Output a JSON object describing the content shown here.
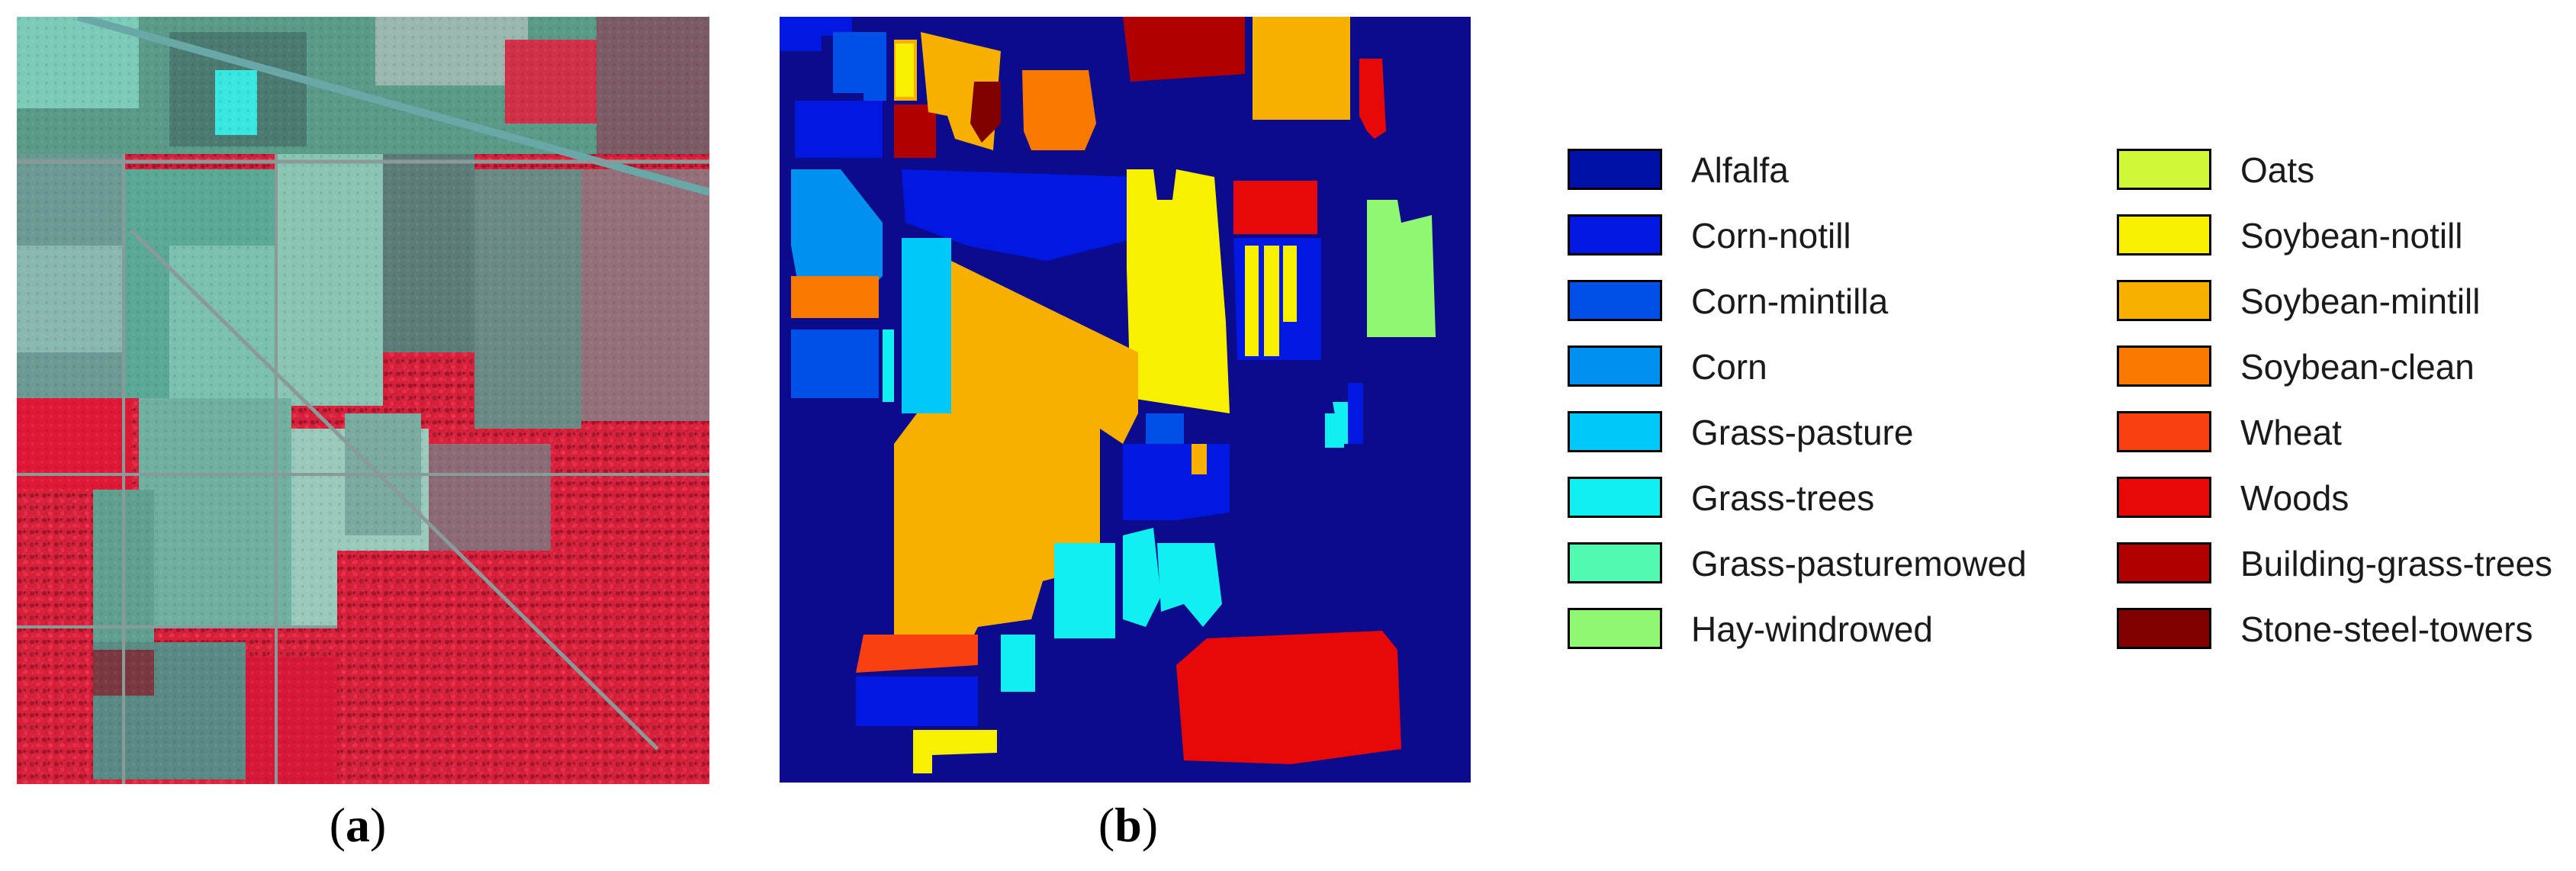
{
  "captions": {
    "a": "a",
    "b": "b"
  },
  "panels": {
    "a": {
      "image": "false-color-aerial-image"
    },
    "b": {
      "image": "ground-truth-class-map",
      "background_color": "#0b0b8c"
    }
  },
  "legend": {
    "column_1": [
      {
        "label": "Alfalfa",
        "color": "#0010a8"
      },
      {
        "label": "Corn-notill",
        "color": "#0018e0"
      },
      {
        "label": "Corn-mintilla",
        "color": "#0050e8"
      },
      {
        "label": "Corn",
        "color": "#0090f0"
      },
      {
        "label": "Grass-pasture",
        "color": "#00c8f8"
      },
      {
        "label": "Grass-trees",
        "color": "#10f0f0"
      },
      {
        "label": "Grass-pasturemowed",
        "color": "#50f8b0"
      },
      {
        "label": "Hay-windrowed",
        "color": "#90f870"
      }
    ],
    "column_2": [
      {
        "label": "Oats",
        "color": "#d0f838"
      },
      {
        "label": "Soybean-notill",
        "color": "#f8f000"
      },
      {
        "label": "Soybean-mintill",
        "color": "#f8b000"
      },
      {
        "label": "Soybean-clean",
        "color": "#f87800"
      },
      {
        "label": "Wheat",
        "color": "#f84010"
      },
      {
        "label": "Woods",
        "color": "#e80808"
      },
      {
        "label": "Building-grass-trees",
        "color": "#b00000"
      },
      {
        "label": "Stone-steel-towers",
        "color": "#800000"
      }
    ]
  }
}
